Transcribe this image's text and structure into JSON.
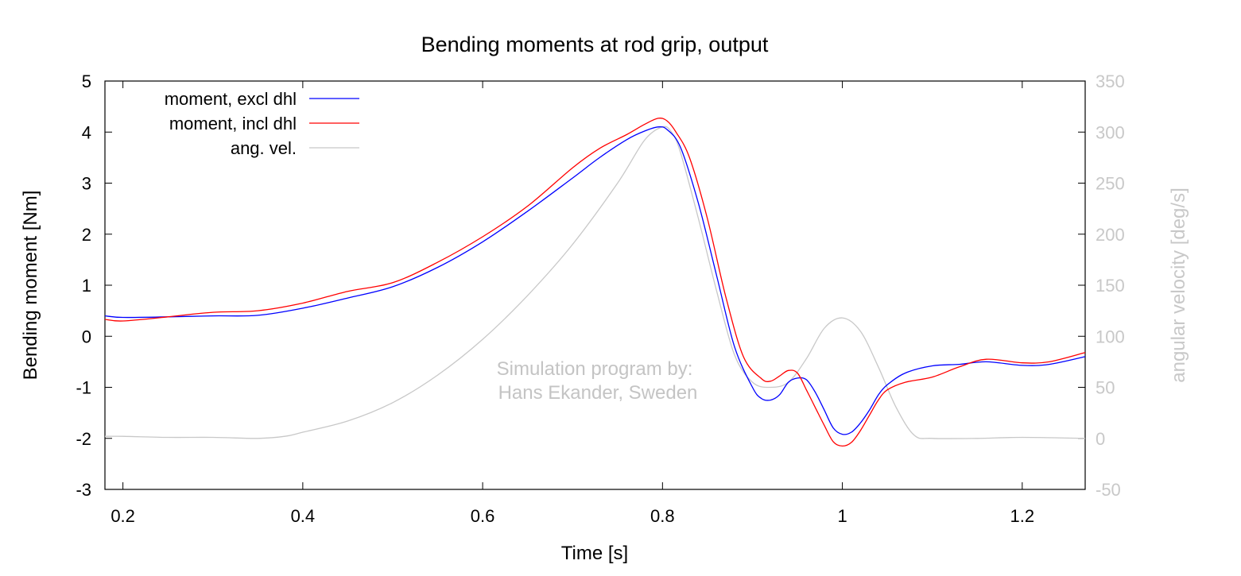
{
  "chart_data": {
    "type": "line",
    "title": "Bending moments at rod grip, output",
    "xlabel": "Time [s]",
    "ylabel": "Bending moment [Nm]",
    "y2label": "angular velocity [deg/s]",
    "xlim": [
      0.18,
      1.27
    ],
    "ylim": [
      -3,
      5
    ],
    "y2lim": [
      -50,
      350
    ],
    "xticks": [
      "0.2",
      "0.4",
      "0.6",
      "0.8",
      "1",
      "1.2"
    ],
    "xtick_values": [
      0.2,
      0.4,
      0.6,
      0.8,
      1.0,
      1.2
    ],
    "yticks": [
      "-3",
      "-2",
      "-1",
      "0",
      "1",
      "2",
      "3",
      "4",
      "5"
    ],
    "ytick_values": [
      -3,
      -2,
      -1,
      0,
      1,
      2,
      3,
      4,
      5
    ],
    "y2ticks": [
      "-50",
      "0",
      "50",
      "100",
      "150",
      "200",
      "250",
      "300",
      "350"
    ],
    "y2tick_values": [
      -50,
      0,
      50,
      100,
      150,
      200,
      250,
      300,
      350
    ],
    "legend_position": "top-left",
    "grid": false,
    "annotation": [
      "Simulation program by:",
      "Hans Ekander, Sweden"
    ],
    "series": [
      {
        "name": "moment, excl dhl",
        "axis": "left",
        "color": "#0000ff",
        "x": [
          0.18,
          0.2,
          0.25,
          0.3,
          0.35,
          0.4,
          0.45,
          0.5,
          0.55,
          0.6,
          0.65,
          0.7,
          0.73,
          0.76,
          0.78,
          0.795,
          0.805,
          0.82,
          0.84,
          0.86,
          0.88,
          0.9,
          0.91,
          0.92,
          0.93,
          0.94,
          0.95,
          0.96,
          0.97,
          0.98,
          0.99,
          1.0,
          1.01,
          1.02,
          1.03,
          1.04,
          1.05,
          1.07,
          1.1,
          1.13,
          1.16,
          1.2,
          1.23,
          1.27
        ],
        "y": [
          0.4,
          0.37,
          0.38,
          0.4,
          0.41,
          0.55,
          0.75,
          0.97,
          1.35,
          1.85,
          2.45,
          3.1,
          3.5,
          3.85,
          4.02,
          4.1,
          4.05,
          3.7,
          2.6,
          1.2,
          -0.2,
          -1.0,
          -1.22,
          -1.25,
          -1.15,
          -0.9,
          -0.82,
          -0.85,
          -1.1,
          -1.45,
          -1.8,
          -1.92,
          -1.88,
          -1.7,
          -1.45,
          -1.15,
          -0.95,
          -0.72,
          -0.58,
          -0.55,
          -0.5,
          -0.57,
          -0.55,
          -0.4
        ]
      },
      {
        "name": "moment, incl dhl",
        "axis": "left",
        "color": "#ff0000",
        "x": [
          0.18,
          0.2,
          0.25,
          0.3,
          0.35,
          0.4,
          0.45,
          0.5,
          0.55,
          0.6,
          0.65,
          0.7,
          0.73,
          0.76,
          0.78,
          0.795,
          0.805,
          0.815,
          0.83,
          0.85,
          0.87,
          0.89,
          0.91,
          0.92,
          0.93,
          0.94,
          0.95,
          0.96,
          0.97,
          0.98,
          0.99,
          1.0,
          1.01,
          1.02,
          1.03,
          1.04,
          1.05,
          1.07,
          1.1,
          1.13,
          1.16,
          1.2,
          1.23,
          1.27
        ],
        "y": [
          0.33,
          0.3,
          0.38,
          0.47,
          0.5,
          0.65,
          0.88,
          1.05,
          1.45,
          1.95,
          2.55,
          3.3,
          3.68,
          3.95,
          4.15,
          4.27,
          4.22,
          4.0,
          3.5,
          2.3,
          0.8,
          -0.4,
          -0.83,
          -0.88,
          -0.78,
          -0.67,
          -0.72,
          -1.05,
          -1.4,
          -1.75,
          -2.07,
          -2.15,
          -2.08,
          -1.85,
          -1.55,
          -1.25,
          -1.05,
          -0.9,
          -0.8,
          -0.6,
          -0.45,
          -0.52,
          -0.5,
          -0.32
        ]
      },
      {
        "name": "ang. vel.",
        "axis": "right",
        "color": "#c8c8c8",
        "x": [
          0.18,
          0.2,
          0.25,
          0.3,
          0.35,
          0.38,
          0.4,
          0.45,
          0.5,
          0.55,
          0.6,
          0.65,
          0.7,
          0.75,
          0.78,
          0.8,
          0.81,
          0.82,
          0.84,
          0.86,
          0.88,
          0.9,
          0.92,
          0.94,
          0.96,
          0.98,
          1.0,
          1.02,
          1.04,
          1.06,
          1.08,
          1.1,
          1.15,
          1.2,
          1.27
        ],
        "y": [
          2,
          2,
          1,
          1,
          0,
          2,
          6,
          17,
          35,
          62,
          97,
          140,
          190,
          250,
          292,
          305,
          300,
          280,
          215,
          145,
          82,
          55,
          50,
          55,
          78,
          108,
          118,
          105,
          70,
          30,
          3,
          0,
          0,
          1,
          0
        ]
      }
    ]
  }
}
